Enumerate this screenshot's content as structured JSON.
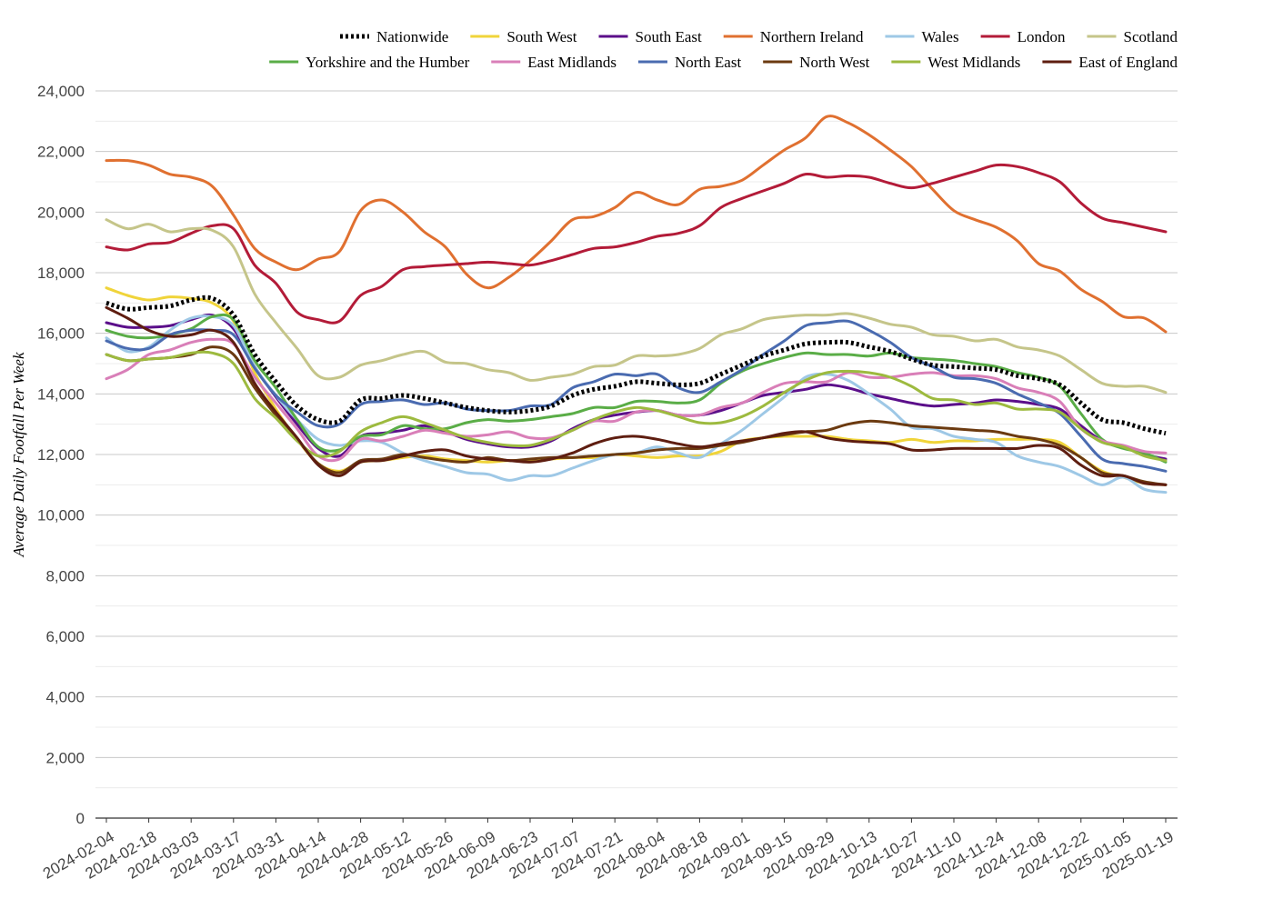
{
  "chart_data": {
    "type": "line",
    "title": "",
    "xlabel": "",
    "ylabel": "Average Daily Footfall Per Week",
    "ylim": [
      0,
      24000
    ],
    "yticks": [
      "0",
      "2,000",
      "4,000",
      "6,000",
      "8,000",
      "10,000",
      "12,000",
      "14,000",
      "16,000",
      "18,000",
      "20,000",
      "22,000",
      "24,000"
    ],
    "ytick_values": [
      0,
      2000,
      4000,
      6000,
      8000,
      10000,
      12000,
      14000,
      16000,
      18000,
      20000,
      22000,
      24000
    ],
    "grid": true,
    "legend_position": "top-right",
    "xticks": [
      "2024-02-04",
      "2024-02-18",
      "2024-03-03",
      "2024-03-17",
      "2024-03-31",
      "2024-04-14",
      "2024-04-28",
      "2024-05-12",
      "2024-05-26",
      "2024-06-09",
      "2024-06-23",
      "2024-07-07",
      "2024-07-21",
      "2024-08-04",
      "2024-08-18",
      "2024-09-01",
      "2024-09-15",
      "2024-09-29",
      "2024-10-13",
      "2024-10-27",
      "2024-11-10",
      "2024-11-24",
      "2024-12-08",
      "2024-12-22",
      "2025-01-05",
      "2025-01-19"
    ],
    "x": [
      "2024-02-04",
      "2024-02-11",
      "2024-02-18",
      "2024-02-25",
      "2024-03-03",
      "2024-03-10",
      "2024-03-17",
      "2024-03-24",
      "2024-03-31",
      "2024-04-07",
      "2024-04-14",
      "2024-04-21",
      "2024-04-28",
      "2024-05-05",
      "2024-05-12",
      "2024-05-19",
      "2024-05-26",
      "2024-06-02",
      "2024-06-09",
      "2024-06-16",
      "2024-06-23",
      "2024-06-30",
      "2024-07-07",
      "2024-07-14",
      "2024-07-21",
      "2024-07-28",
      "2024-08-04",
      "2024-08-11",
      "2024-08-18",
      "2024-08-25",
      "2024-09-01",
      "2024-09-08",
      "2024-09-15",
      "2024-09-22",
      "2024-09-29",
      "2024-10-06",
      "2024-10-13",
      "2024-10-20",
      "2024-10-27",
      "2024-11-03",
      "2024-11-10",
      "2024-11-17",
      "2024-11-24",
      "2024-12-01",
      "2024-12-08",
      "2024-12-15",
      "2024-12-22",
      "2024-12-29",
      "2025-01-05",
      "2025-01-12",
      "2025-01-19"
    ],
    "series": [
      {
        "name": "Nationwide",
        "color": "#000000",
        "dashed": true,
        "values": [
          17000,
          16800,
          16850,
          16900,
          17100,
          17150,
          16600,
          15300,
          14400,
          13600,
          13150,
          13100,
          13800,
          13850,
          13950,
          13850,
          13700,
          13550,
          13450,
          13400,
          13450,
          13600,
          13950,
          14150,
          14250,
          14400,
          14350,
          14300,
          14350,
          14650,
          14950,
          15250,
          15450,
          15650,
          15700,
          15700,
          15550,
          15400,
          15150,
          14950,
          14900,
          14850,
          14800,
          14600,
          14500,
          14300,
          13700,
          13150,
          13050,
          12850,
          12700
        ]
      },
      {
        "name": "South West",
        "color": "#f0d43a",
        "values": [
          17500,
          17250,
          17100,
          17200,
          17150,
          17000,
          16400,
          14700,
          13500,
          12500,
          11700,
          11450,
          11750,
          11800,
          11900,
          11950,
          11850,
          11800,
          11750,
          11800,
          11800,
          11850,
          11900,
          11900,
          12000,
          11950,
          11900,
          11950,
          11950,
          12100,
          12450,
          12550,
          12600,
          12600,
          12600,
          12500,
          12450,
          12400,
          12500,
          12400,
          12450,
          12450,
          12500,
          12500,
          12500,
          12400,
          11900,
          11450,
          11250,
          11050,
          11000
        ]
      },
      {
        "name": "South East",
        "color": "#5b0f8a",
        "values": [
          16350,
          16200,
          16200,
          16250,
          16450,
          16600,
          16150,
          14900,
          13900,
          13000,
          12200,
          11950,
          12600,
          12700,
          12800,
          12950,
          12750,
          12500,
          12350,
          12250,
          12250,
          12450,
          12850,
          13150,
          13300,
          13400,
          13450,
          13300,
          13300,
          13450,
          13700,
          13950,
          14050,
          14150,
          14300,
          14200,
          14000,
          13850,
          13700,
          13600,
          13650,
          13700,
          13800,
          13750,
          13650,
          13500,
          12950,
          12450,
          12250,
          12000,
          11850
        ]
      },
      {
        "name": "Northern Ireland",
        "color": "#e07030",
        "values": [
          21700,
          21700,
          21550,
          21250,
          21150,
          20850,
          19900,
          18800,
          18350,
          18100,
          18450,
          18700,
          20050,
          20400,
          20000,
          19350,
          18850,
          17950,
          17500,
          17850,
          18400,
          19050,
          19750,
          19850,
          20150,
          20650,
          20400,
          20250,
          20750,
          20850,
          21050,
          21550,
          22050,
          22450,
          23150,
          22950,
          22550,
          22050,
          21500,
          20750,
          20050,
          19750,
          19500,
          19050,
          18300,
          18050,
          17450,
          17050,
          16550,
          16500,
          16050
        ]
      },
      {
        "name": "Wales",
        "color": "#9ec8e6",
        "values": [
          15850,
          15400,
          15550,
          16100,
          16500,
          16550,
          16250,
          14900,
          13950,
          13150,
          12500,
          12300,
          12450,
          12400,
          12050,
          11800,
          11600,
          11400,
          11350,
          11150,
          11300,
          11300,
          11550,
          11800,
          12000,
          12050,
          12250,
          12050,
          11900,
          12350,
          12800,
          13350,
          13900,
          14550,
          14650,
          14450,
          14000,
          13500,
          12900,
          12850,
          12600,
          12500,
          12400,
          11950,
          11750,
          11600,
          11300,
          11000,
          11250,
          10850,
          10750
        ]
      },
      {
        "name": "London",
        "color": "#b31b38",
        "values": [
          18850,
          18750,
          18950,
          19000,
          19300,
          19550,
          19450,
          18250,
          17650,
          16700,
          16450,
          16400,
          17250,
          17550,
          18100,
          18200,
          18250,
          18300,
          18350,
          18300,
          18250,
          18400,
          18600,
          18800,
          18850,
          19000,
          19200,
          19300,
          19550,
          20150,
          20450,
          20700,
          20950,
          21250,
          21150,
          21200,
          21150,
          20950,
          20800,
          20950,
          21150,
          21350,
          21550,
          21500,
          21300,
          21000,
          20300,
          19800,
          19650,
          19500,
          19350
        ]
      },
      {
        "name": "Scotland",
        "color": "#c5c58a",
        "values": [
          19750,
          19450,
          19600,
          19350,
          19450,
          19400,
          18850,
          17300,
          16350,
          15500,
          14600,
          14550,
          14950,
          15100,
          15300,
          15400,
          15050,
          15000,
          14800,
          14700,
          14450,
          14550,
          14650,
          14900,
          14950,
          15250,
          15250,
          15300,
          15500,
          15950,
          16150,
          16450,
          16550,
          16600,
          16600,
          16650,
          16500,
          16300,
          16200,
          15950,
          15900,
          15750,
          15800,
          15550,
          15450,
          15250,
          14800,
          14350,
          14250,
          14250,
          14050
        ]
      },
      {
        "name": "Yorkshire and the Humber",
        "color": "#5aad47",
        "values": [
          16100,
          15900,
          15850,
          15950,
          16150,
          16550,
          16450,
          15100,
          14200,
          13150,
          12250,
          12150,
          12600,
          12650,
          12950,
          12850,
          12850,
          13050,
          13150,
          13100,
          13150,
          13250,
          13350,
          13550,
          13550,
          13750,
          13750,
          13700,
          13800,
          14350,
          14750,
          15000,
          15200,
          15350,
          15300,
          15300,
          15250,
          15350,
          15200,
          15150,
          15100,
          15000,
          14900,
          14700,
          14550,
          14250,
          13350,
          12500,
          12200,
          12050,
          11750
        ]
      },
      {
        "name": "East Midlands",
        "color": "#d97fb8",
        "values": [
          14500,
          14800,
          15300,
          15450,
          15700,
          15800,
          15650,
          14550,
          13700,
          12850,
          11950,
          11850,
          12500,
          12450,
          12600,
          12800,
          12700,
          12600,
          12650,
          12750,
          12550,
          12550,
          12800,
          13100,
          13100,
          13400,
          13450,
          13300,
          13300,
          13550,
          13700,
          14050,
          14350,
          14400,
          14400,
          14700,
          14550,
          14550,
          14650,
          14700,
          14600,
          14600,
          14500,
          14200,
          14050,
          13750,
          12850,
          12450,
          12300,
          12100,
          12050
        ]
      },
      {
        "name": "North East",
        "color": "#4a6bb0",
        "values": [
          15750,
          15500,
          15500,
          15950,
          16100,
          16100,
          15950,
          14850,
          13950,
          13400,
          12950,
          13000,
          13650,
          13750,
          13800,
          13650,
          13700,
          13500,
          13450,
          13450,
          13600,
          13650,
          14200,
          14400,
          14650,
          14600,
          14650,
          14200,
          14050,
          14400,
          14800,
          15300,
          15750,
          16250,
          16350,
          16400,
          16100,
          15700,
          15200,
          14900,
          14550,
          14500,
          14350,
          14000,
          13700,
          13350,
          12600,
          11850,
          11700,
          11600,
          11450
        ]
      },
      {
        "name": "North West",
        "color": "#6b3a10",
        "values": [
          15300,
          15100,
          15150,
          15200,
          15300,
          15550,
          15300,
          14200,
          13300,
          12500,
          11700,
          11400,
          11800,
          11850,
          12000,
          11900,
          11800,
          11750,
          11900,
          11800,
          11850,
          11900,
          11900,
          11950,
          12000,
          12050,
          12150,
          12200,
          12200,
          12300,
          12400,
          12550,
          12650,
          12750,
          12800,
          13000,
          13100,
          13050,
          12950,
          12900,
          12850,
          12800,
          12750,
          12600,
          12500,
          12300,
          11900,
          11400,
          11300,
          11100,
          11000
        ]
      },
      {
        "name": "West Midlands",
        "color": "#9dba3f",
        "values": [
          15300,
          15100,
          15150,
          15200,
          15350,
          15350,
          15000,
          13850,
          13200,
          12450,
          11950,
          12100,
          12750,
          13050,
          13250,
          13050,
          12800,
          12550,
          12400,
          12300,
          12300,
          12500,
          12800,
          13150,
          13400,
          13550,
          13450,
          13250,
          13050,
          13050,
          13250,
          13600,
          14050,
          14450,
          14700,
          14750,
          14700,
          14550,
          14250,
          13850,
          13800,
          13650,
          13700,
          13500,
          13500,
          13400,
          12850,
          12400,
          12250,
          11950,
          11800
        ]
      },
      {
        "name": "East of England",
        "color": "#5e1d10",
        "values": [
          16850,
          16500,
          16100,
          15900,
          15950,
          16100,
          15700,
          14350,
          13400,
          12550,
          11650,
          11300,
          11750,
          11800,
          11950,
          12100,
          12150,
          11950,
          11850,
          11800,
          11750,
          11850,
          12050,
          12350,
          12550,
          12600,
          12500,
          12350,
          12250,
          12350,
          12450,
          12550,
          12700,
          12750,
          12550,
          12450,
          12400,
          12350,
          12150,
          12150,
          12200,
          12200,
          12200,
          12200,
          12300,
          12200,
          11650,
          11300,
          11300,
          11050,
          11000
        ]
      }
    ]
  }
}
